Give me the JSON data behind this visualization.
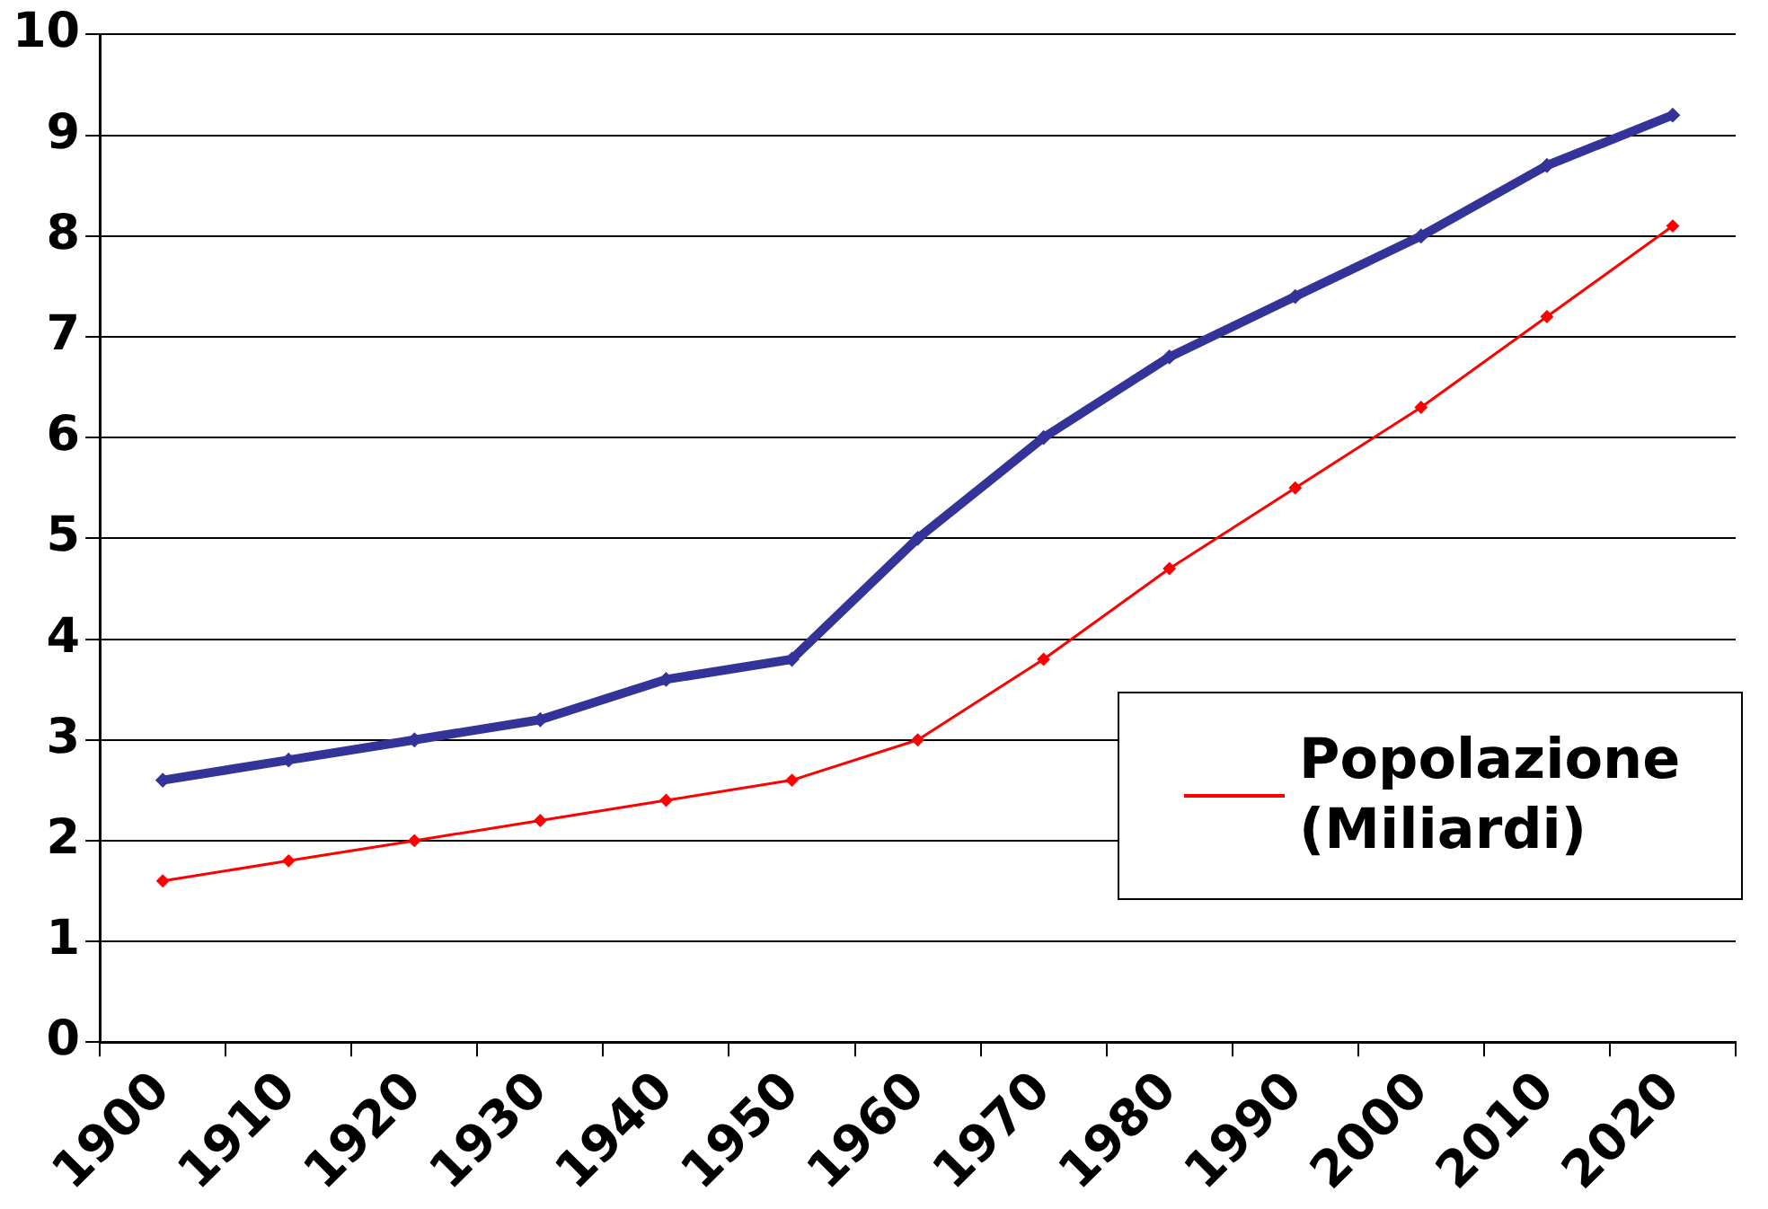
{
  "chart_data": {
    "type": "line",
    "categories": [
      "1900",
      "1910",
      "1920",
      "1930",
      "1940",
      "1950",
      "1960",
      "1970",
      "1980",
      "1990",
      "2000",
      "2010",
      "2020"
    ],
    "series": [
      {
        "color": "#333399",
        "values": [
          2.6,
          2.8,
          3.0,
          3.2,
          3.6,
          3.8,
          5.0,
          6.0,
          6.8,
          7.4,
          8.0,
          8.7,
          9.2
        ]
      },
      {
        "name": "Popolazione (Miliardi)",
        "color": "#ff0000",
        "values": [
          1.6,
          1.8,
          2.0,
          2.2,
          2.4,
          2.6,
          3.0,
          3.8,
          4.7,
          5.5,
          6.3,
          7.2,
          8.1
        ]
      }
    ],
    "ylim": [
      0,
      10
    ],
    "yticks": [
      0,
      1,
      2,
      3,
      4,
      5,
      6,
      7,
      8,
      9,
      10
    ],
    "grid": "y",
    "legend": "right",
    "marker": "diamond",
    "line_style": "solid"
  }
}
